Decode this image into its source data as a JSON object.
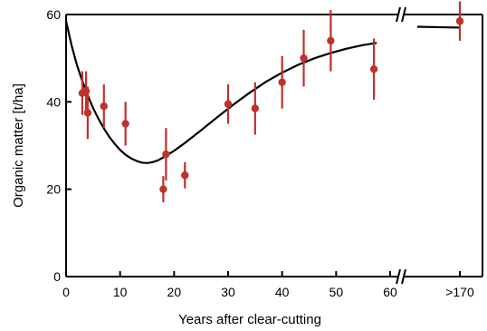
{
  "chart_data": {
    "type": "scatter",
    "title": "",
    "xlabel": "Years after clear-cutting",
    "ylabel": "Organic matter [t/ha]",
    "xlim": [
      0,
      60
    ],
    "ylim": [
      0,
      60
    ],
    "x_ticks": [
      0,
      10,
      20,
      30,
      40,
      50,
      60
    ],
    "x_ticks_labels": [
      "0",
      "10",
      "20",
      "30",
      "40",
      "50",
      "60"
    ],
    "y_ticks": [
      0,
      20,
      40,
      60
    ],
    "y_ticks_labels": [
      "0",
      "20",
      "40",
      "60"
    ],
    "axis_break": {
      "after_x": 60,
      "extra_category": ">170"
    },
    "grid": false,
    "colors": {
      "points": "#c0302c",
      "curve": "#000000"
    },
    "series": [
      {
        "type": "scatter_with_error",
        "points": [
          {
            "x": 3,
            "y": 42,
            "err": 5
          },
          {
            "x": 3.7,
            "y": 42.5,
            "err": 4.5
          },
          {
            "x": 4,
            "y": 37.5,
            "err": 6
          },
          {
            "x": 7,
            "y": 39,
            "err": 5
          },
          {
            "x": 11,
            "y": 35,
            "err": 5
          },
          {
            "x": 18,
            "y": 20,
            "err": 3
          },
          {
            "x": 18.5,
            "y": 28,
            "err": 6
          },
          {
            "x": 22,
            "y": 23.2,
            "err": 3
          },
          {
            "x": 30,
            "y": 39.5,
            "err": 4.5
          },
          {
            "x": 35,
            "y": 38.5,
            "err": 6
          },
          {
            "x": 40,
            "y": 44.5,
            "err": 6
          },
          {
            "x": 44,
            "y": 50,
            "err": 6.5
          },
          {
            "x": 49,
            "y": 54,
            "err": 7
          },
          {
            "x": 57,
            "y": 47.5,
            "err": 7
          }
        ],
        "extra_point": {
          "category": ">170",
          "y": 58.5,
          "err": 4.5
        }
      },
      {
        "type": "curve",
        "points": [
          [
            0,
            58.5
          ],
          [
            1,
            53
          ],
          [
            2,
            48.5
          ],
          [
            3,
            44.8
          ],
          [
            4,
            41.5
          ],
          [
            5,
            38.6
          ],
          [
            6,
            36.1
          ],
          [
            7,
            33.9
          ],
          [
            8,
            32
          ],
          [
            9,
            30.4
          ],
          [
            10,
            29
          ],
          [
            11,
            27.9
          ],
          [
            12,
            27.1
          ],
          [
            13,
            26.5
          ],
          [
            14,
            26.1
          ],
          [
            15,
            26
          ],
          [
            16,
            26.2
          ],
          [
            17,
            26.6
          ],
          [
            18,
            27.3
          ],
          [
            20,
            28.8
          ],
          [
            22,
            30.6
          ],
          [
            25,
            33.5
          ],
          [
            28,
            36.5
          ],
          [
            31,
            39.4
          ],
          [
            34,
            42.1
          ],
          [
            37,
            44.6
          ],
          [
            40,
            46.7
          ],
          [
            43,
            48.5
          ],
          [
            46,
            50
          ],
          [
            49,
            51.2
          ],
          [
            52,
            52.2
          ],
          [
            55,
            53
          ],
          [
            57.5,
            53.5
          ]
        ],
        "extra_segment": {
          "y_start": 57.2,
          "y_end": 57
        }
      }
    ]
  }
}
